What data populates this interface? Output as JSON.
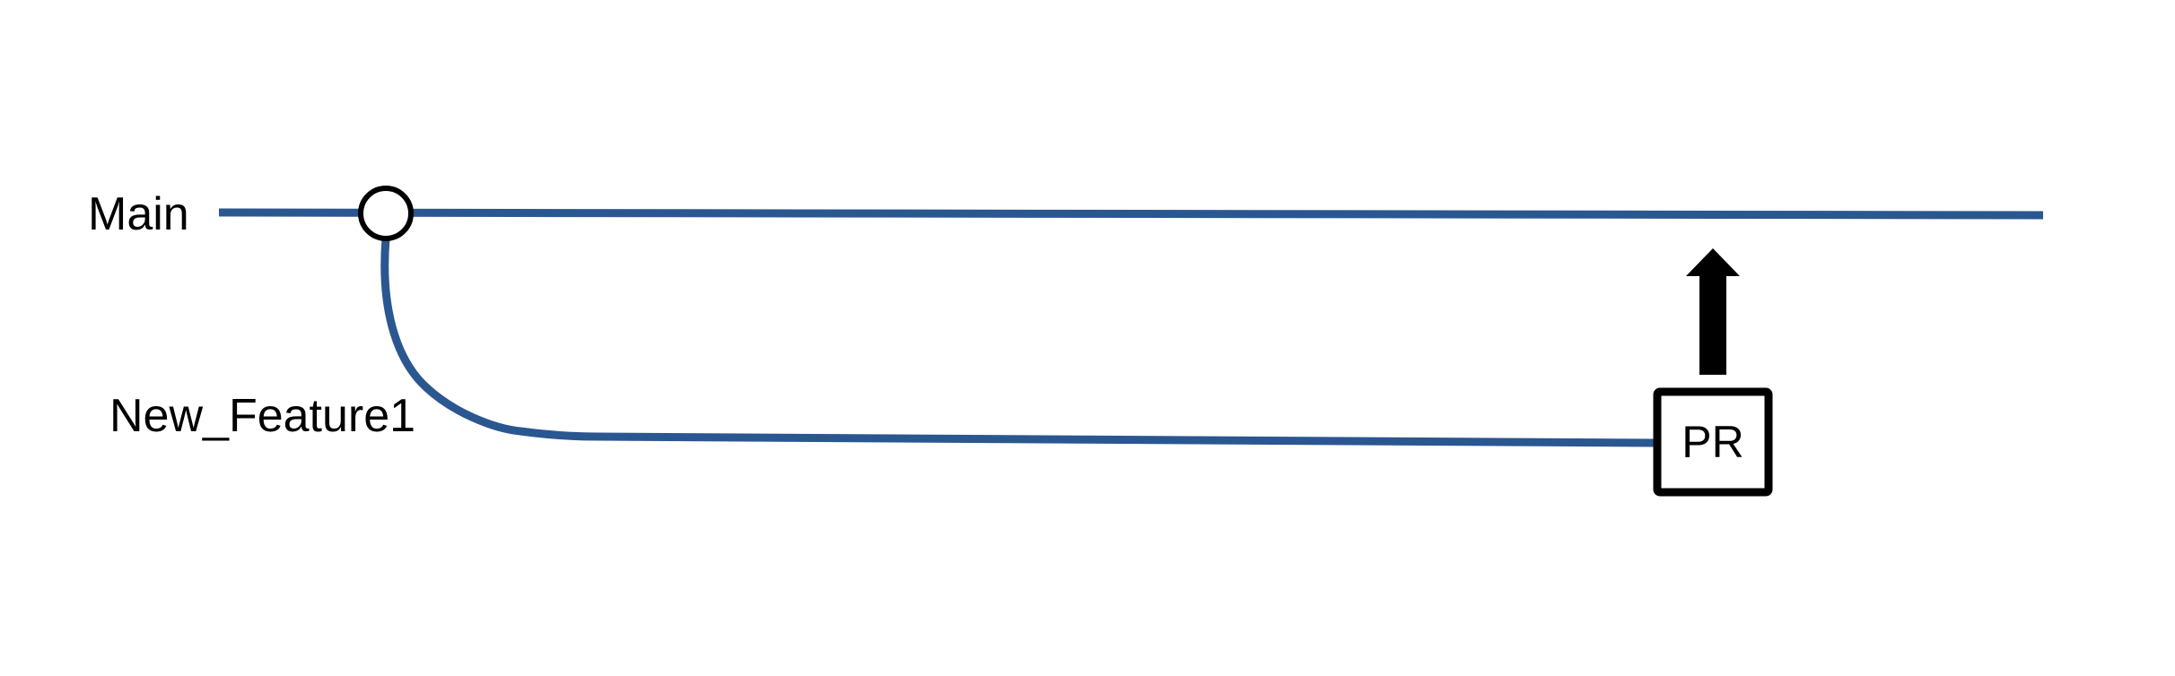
{
  "branches": {
    "main_label": "Main",
    "feature_label": "New_Feature1"
  },
  "pull_request": {
    "label": "PR"
  },
  "colors": {
    "branch_line": "#2B5791",
    "outline": "#000000",
    "commit_fill": "#ffffff",
    "background": "#ffffff"
  },
  "icons": {
    "commit": "commit-circle-icon",
    "merge_direction": "up-arrow-icon"
  }
}
